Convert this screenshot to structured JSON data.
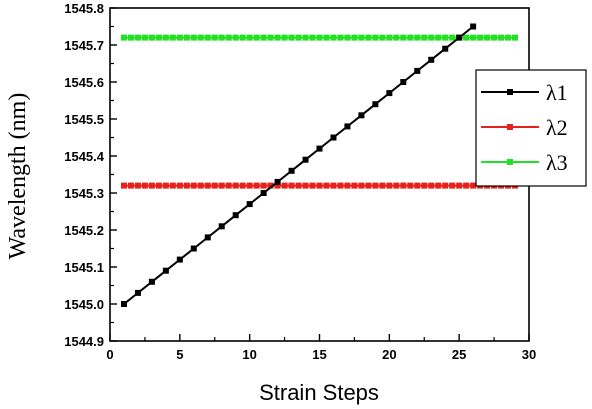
{
  "chart_data": {
    "type": "line",
    "xlabel": "Strain Steps",
    "ylabel": "Wavelength (nm)",
    "xlim": [
      0,
      30
    ],
    "ylim": [
      1544.9,
      1545.8
    ],
    "xticks": [
      0,
      5,
      10,
      15,
      20,
      25,
      30
    ],
    "xtick_labels": [
      "0",
      "5",
      "10",
      "15",
      "20",
      "25",
      "30"
    ],
    "yticks": [
      1544.9,
      1545.0,
      1545.1,
      1545.2,
      1545.3,
      1545.4,
      1545.5,
      1545.6,
      1545.7,
      1545.8
    ],
    "ytick_labels": [
      "1544.9",
      "1545.0",
      "1545.1",
      "1545.2",
      "1545.3",
      "1545.4",
      "1545.5",
      "1545.6",
      "1545.7",
      "1545.8"
    ],
    "grid": false,
    "legend_position": "right",
    "x": [
      1,
      2,
      3,
      4,
      5,
      6,
      7,
      8,
      9,
      10,
      11,
      12,
      13,
      14,
      15,
      16,
      17,
      18,
      19,
      20,
      21,
      22,
      23,
      24,
      25,
      26
    ],
    "series": [
      {
        "name": "λ1",
        "color": "#000000",
        "marker": "square",
        "values": [
          1545.0,
          1545.03,
          1545.06,
          1545.09,
          1545.12,
          1545.15,
          1545.18,
          1545.21,
          1545.24,
          1545.27,
          1545.3,
          1545.33,
          1545.36,
          1545.39,
          1545.42,
          1545.45,
          1545.48,
          1545.51,
          1545.54,
          1545.57,
          1545.6,
          1545.63,
          1545.66,
          1545.69,
          1545.72,
          1545.75
        ]
      },
      {
        "name": "λ2",
        "color": "#e8201c",
        "marker": "square",
        "values": [
          1545.32,
          1545.32,
          1545.32,
          1545.32,
          1545.32,
          1545.32,
          1545.32,
          1545.32,
          1545.32,
          1545.32,
          1545.32,
          1545.32,
          1545.32,
          1545.32,
          1545.32,
          1545.32,
          1545.32,
          1545.32,
          1545.32,
          1545.32,
          1545.32,
          1545.32,
          1545.32,
          1545.32,
          1545.32,
          1545.32,
          1545.32,
          1545.32,
          1545.32,
          1545.32,
          1545.32,
          1545.32,
          1545.32,
          1545.32,
          1545.32,
          1545.32,
          1545.32,
          1545.32,
          1545.32,
          1545.32,
          1545.32,
          1545.32,
          1545.32,
          1545.32,
          1545.32,
          1545.32,
          1545.32,
          1545.32,
          1545.32,
          1545.32,
          1545.32,
          1545.32,
          1545.32,
          1545.32,
          1545.32,
          1545.32,
          1545.32
        ],
        "x": [
          1,
          1.5,
          2,
          2.5,
          3,
          3.5,
          4,
          4.5,
          5,
          5.5,
          6,
          6.5,
          7,
          7.5,
          8,
          8.5,
          9,
          9.5,
          10,
          10.5,
          11,
          11.5,
          12,
          12.5,
          13,
          13.5,
          14,
          14.5,
          15,
          15.5,
          16,
          16.5,
          17,
          17.5,
          18,
          18.5,
          19,
          19.5,
          20,
          20.5,
          21,
          21.5,
          22,
          22.5,
          23,
          23.5,
          24,
          24.5,
          25,
          25.5,
          26,
          26.5,
          27,
          27.5,
          28,
          28.5,
          29
        ]
      },
      {
        "name": "λ3",
        "color": "#22e022",
        "marker": "square",
        "values": [
          1545.72,
          1545.72,
          1545.72,
          1545.72,
          1545.72,
          1545.72,
          1545.72,
          1545.72,
          1545.72,
          1545.72,
          1545.72,
          1545.72,
          1545.72,
          1545.72,
          1545.72,
          1545.72,
          1545.72,
          1545.72,
          1545.72,
          1545.72,
          1545.72,
          1545.72,
          1545.72,
          1545.72,
          1545.72,
          1545.72,
          1545.72,
          1545.72,
          1545.72,
          1545.72,
          1545.72,
          1545.72,
          1545.72,
          1545.72,
          1545.72,
          1545.72,
          1545.72,
          1545.72,
          1545.72,
          1545.72,
          1545.72,
          1545.72,
          1545.72,
          1545.72,
          1545.72,
          1545.72,
          1545.72,
          1545.72,
          1545.72,
          1545.72,
          1545.72,
          1545.72,
          1545.72,
          1545.72,
          1545.72,
          1545.72,
          1545.72
        ],
        "x": [
          1,
          1.5,
          2,
          2.5,
          3,
          3.5,
          4,
          4.5,
          5,
          5.5,
          6,
          6.5,
          7,
          7.5,
          8,
          8.5,
          9,
          9.5,
          10,
          10.5,
          11,
          11.5,
          12,
          12.5,
          13,
          13.5,
          14,
          14.5,
          15,
          15.5,
          16,
          16.5,
          17,
          17.5,
          18,
          18.5,
          19,
          19.5,
          20,
          20.5,
          21,
          21.5,
          22,
          22.5,
          23,
          23.5,
          24,
          24.5,
          25,
          25.5,
          26,
          26.5,
          27,
          27.5,
          28,
          28.5,
          29
        ]
      }
    ]
  }
}
